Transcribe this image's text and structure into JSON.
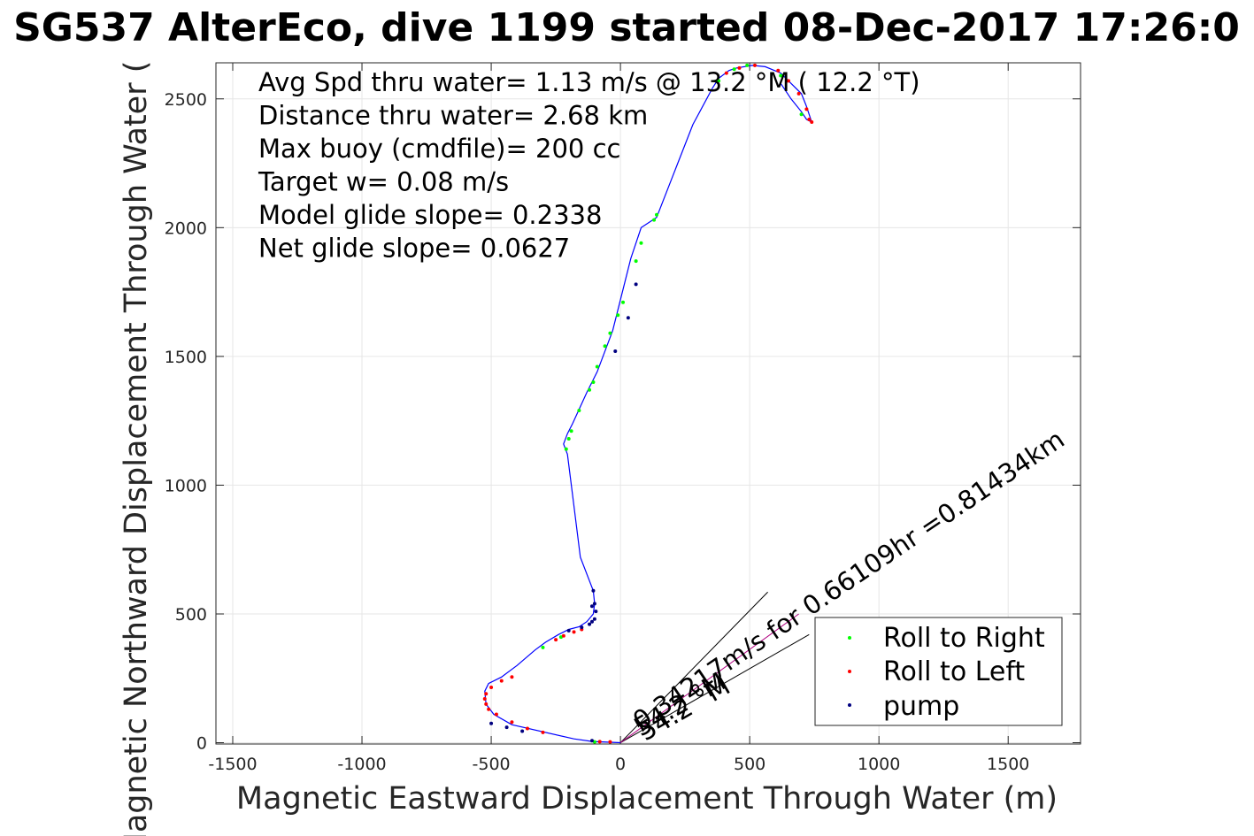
{
  "chart_data": {
    "type": "line",
    "title": "SG537 AlterEco, dive 1199 started 08-Dec-2017 17:26:0",
    "xlabel": "Magnetic Eastward Displacement Through Water (m)",
    "ylabel": "Magnetic Northward Displacement Through Water (",
    "xlim": [
      -1565,
      1780
    ],
    "ylim": [
      -5,
      2640
    ],
    "xticks": [
      -1500,
      -1000,
      -500,
      0,
      500,
      1000,
      1500
    ],
    "yticks": [
      0,
      500,
      1000,
      1500,
      2000,
      2500
    ],
    "grid": true,
    "legend_position": "bottom-right",
    "colors": {
      "track": "#0000ff",
      "roll_right": "#00ff00",
      "roll_left": "#ff0000",
      "pump": "#000080",
      "mixed": "#b00080"
    },
    "annotations": [
      "Avg Spd thru water=  1.13 m/s @  13.2 °M ( 12.2 °T)",
      "Distance thru water=  2.68 km",
      "Max buoy (cmdfile)= 200 cc",
      "Target w= 0.08 m/s",
      "Model glide slope= 0.2338",
      "Net glide slope= 0.0627"
    ],
    "current_labels": {
      "line1": "0.34217m/s for 0.66109hr =0.81434km",
      "line2": "54.2 °M",
      "line3": "54.2 °M"
    },
    "current_vectors": [
      {
        "x": [
          0,
          570
        ],
        "y": [
          0,
          585
        ]
      },
      {
        "x": [
          0,
          730
        ],
        "y": [
          0,
          420
        ]
      },
      {
        "x": [
          0,
          690
        ],
        "y": [
          0,
          500
        ]
      }
    ],
    "series": [
      {
        "name": "track",
        "x": [
          0,
          -110,
          -180,
          -420,
          -490,
          -520,
          -525,
          -510,
          -460,
          -400,
          -330,
          -290,
          -240,
          -200,
          -160,
          -130,
          -105,
          -100,
          -105,
          -155,
          -190,
          -205,
          -220,
          -205,
          -185,
          -130,
          -90,
          -30,
          40,
          80,
          140,
          280,
          355,
          380,
          420,
          450,
          510,
          560,
          620,
          660,
          700,
          720,
          740,
          720,
          700,
          660,
          620
        ],
        "y": [
          0,
          5,
          15,
          70,
          110,
          150,
          200,
          230,
          255,
          300,
          360,
          390,
          420,
          440,
          450,
          470,
          500,
          540,
          590,
          720,
          1000,
          1120,
          1160,
          1200,
          1240,
          1360,
          1440,
          1600,
          1880,
          2000,
          2040,
          2400,
          2540,
          2580,
          2610,
          2620,
          2630,
          2625,
          2600,
          2560,
          2520,
          2470,
          2410,
          2420,
          2450,
          2500,
          2560
        ]
      }
    ],
    "markers": {
      "roll_right": {
        "label": "Roll to Right",
        "x": [
          -100,
          -300,
          -230,
          -210,
          -200,
          -190,
          -160,
          -120,
          -105,
          -90,
          -60,
          -40,
          -10,
          10,
          60,
          80,
          130,
          140,
          380,
          440,
          490,
          620,
          700
        ],
        "y": [
          3,
          370,
          410,
          1140,
          1180,
          1210,
          1290,
          1370,
          1400,
          1460,
          1540,
          1590,
          1660,
          1710,
          1870,
          1940,
          2030,
          2050,
          2570,
          2615,
          2630,
          2590,
          2440
        ]
      },
      "roll_left": {
        "label": "Roll to Left",
        "x": [
          -40,
          -80,
          -300,
          -360,
          -420,
          -480,
          -510,
          -520,
          -525,
          -520,
          -500,
          -460,
          -420,
          -250,
          -220,
          -180,
          -150,
          410,
          460,
          520,
          610,
          650,
          690,
          720,
          740,
          730
        ],
        "y": [
          3,
          4,
          40,
          55,
          80,
          110,
          130,
          150,
          170,
          190,
          215,
          240,
          255,
          400,
          415,
          430,
          440,
          2600,
          2620,
          2630,
          2610,
          2570,
          2520,
          2460,
          2410,
          2420
        ]
      },
      "pump": {
        "label": "pump",
        "x": [
          -110,
          -200,
          -150,
          -120,
          -110,
          -100,
          -95,
          -100,
          -105,
          -20,
          30,
          60,
          -500,
          -440,
          -380,
          -110
        ],
        "y": [
          8,
          435,
          448,
          460,
          470,
          480,
          510,
          540,
          590,
          1520,
          1650,
          1780,
          75,
          60,
          45,
          530
        ]
      }
    },
    "legend": [
      "Roll to Right",
      "Roll to Left",
      "pump"
    ]
  }
}
